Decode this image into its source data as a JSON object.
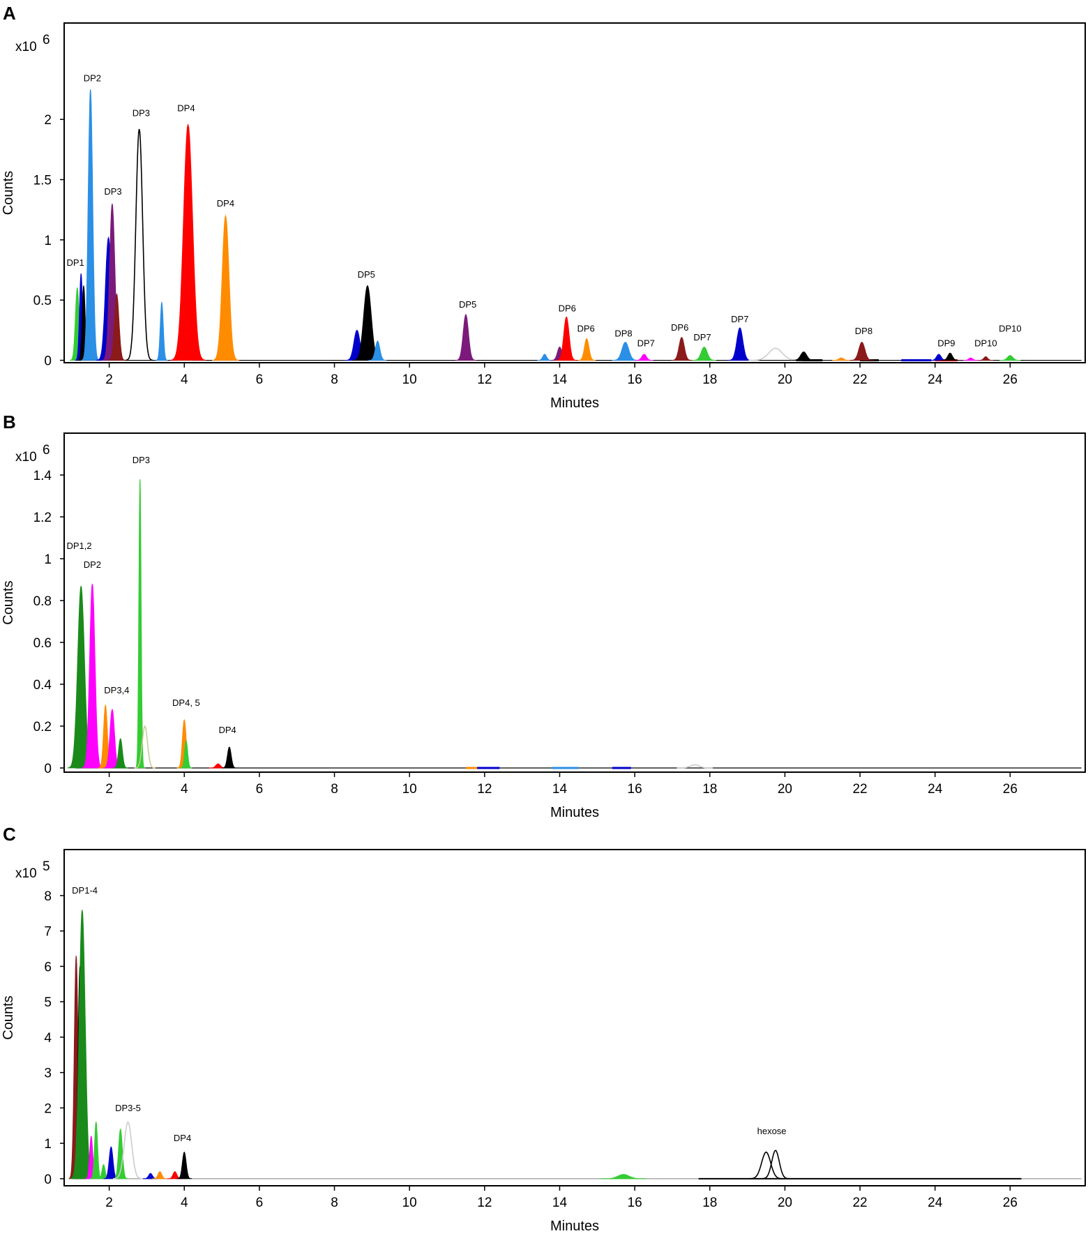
{
  "chart_data": [
    {
      "type": "line",
      "panel_letter": "A",
      "xlabel": "Minutes",
      "ylabel": "Counts",
      "y_multiplier": "x10",
      "y_exponent": "6",
      "xlim": [
        0.8,
        28
      ],
      "ylim": [
        -0.02,
        2.8
      ],
      "x_ticks": [
        2,
        4,
        6,
        8,
        10,
        12,
        14,
        16,
        18,
        20,
        22,
        24,
        26
      ],
      "y_ticks": [
        0,
        0.5,
        1,
        1.5,
        2
      ],
      "y_tick_labels": [
        "0",
        "0.5",
        "1",
        "1.5",
        "2"
      ],
      "grid": false,
      "peaks": [
        {
          "x": 1.15,
          "y": 0.6,
          "w": 0.05,
          "color": "#33cc33"
        },
        {
          "x": 1.25,
          "y": 0.72,
          "w": 0.04,
          "color": "#0000cc"
        },
        {
          "x": 1.32,
          "y": 0.62,
          "w": 0.04,
          "color": "#000000"
        },
        {
          "x": 1.5,
          "y": 2.25,
          "w": 0.06,
          "color": "#2b8fe6"
        },
        {
          "x": 1.98,
          "y": 1.02,
          "w": 0.08,
          "color": "#0000cc"
        },
        {
          "x": 2.08,
          "y": 1.3,
          "w": 0.07,
          "color": "#7b1a7b"
        },
        {
          "x": 2.2,
          "y": 0.55,
          "w": 0.06,
          "color": "#8b1a1a"
        },
        {
          "x": 2.8,
          "y": 1.92,
          "w": 0.09,
          "color": "#000000",
          "fill": false
        },
        {
          "x": 3.4,
          "y": 0.48,
          "w": 0.04,
          "color": "#2b8fe6"
        },
        {
          "x": 3.85,
          "y": 0.07,
          "w": 0.05,
          "color": "#7b1a7b"
        },
        {
          "x": 4.0,
          "y": 0.08,
          "w": 0.05,
          "color": "#33cc33"
        },
        {
          "x": 4.1,
          "y": 1.96,
          "w": 0.12,
          "color": "#ff0000"
        },
        {
          "x": 5.1,
          "y": 1.2,
          "w": 0.09,
          "color": "#ff8c00"
        },
        {
          "x": 8.6,
          "y": 0.25,
          "w": 0.08,
          "color": "#0000cc"
        },
        {
          "x": 8.88,
          "y": 0.62,
          "w": 0.1,
          "color": "#000000"
        },
        {
          "x": 9.15,
          "y": 0.16,
          "w": 0.06,
          "color": "#2b8fe6"
        },
        {
          "x": 11.5,
          "y": 0.38,
          "w": 0.07,
          "color": "#7b1a7b"
        },
        {
          "x": 13.6,
          "y": 0.05,
          "w": 0.05,
          "color": "#2b8fe6"
        },
        {
          "x": 14.0,
          "y": 0.11,
          "w": 0.06,
          "color": "#7b1a7b"
        },
        {
          "x": 14.18,
          "y": 0.36,
          "w": 0.07,
          "color": "#ff0000"
        },
        {
          "x": 14.72,
          "y": 0.18,
          "w": 0.06,
          "color": "#ff8c00"
        },
        {
          "x": 15.75,
          "y": 0.15,
          "w": 0.09,
          "color": "#2b8fe6"
        },
        {
          "x": 16.25,
          "y": 0.05,
          "w": 0.06,
          "color": "#ff00ff"
        },
        {
          "x": 17.25,
          "y": 0.19,
          "w": 0.07,
          "color": "#8b1a1a"
        },
        {
          "x": 17.85,
          "y": 0.11,
          "w": 0.08,
          "color": "#33cc33"
        },
        {
          "x": 18.8,
          "y": 0.27,
          "w": 0.08,
          "color": "#0000cc"
        },
        {
          "x": 19.75,
          "y": 0.1,
          "w": 0.18,
          "color": "#cccccc",
          "fill": false
        },
        {
          "x": 20.5,
          "y": 0.07,
          "w": 0.08,
          "color": "#000000"
        },
        {
          "x": 21.5,
          "y": 0.02,
          "w": 0.06,
          "color": "#ff8c00"
        },
        {
          "x": 22.05,
          "y": 0.15,
          "w": 0.08,
          "color": "#8b1a1a"
        },
        {
          "x": 24.1,
          "y": 0.05,
          "w": 0.06,
          "color": "#0000cc"
        },
        {
          "x": 24.4,
          "y": 0.06,
          "w": 0.06,
          "color": "#000000"
        },
        {
          "x": 24.95,
          "y": 0.02,
          "w": 0.05,
          "color": "#ff00ff"
        },
        {
          "x": 25.35,
          "y": 0.03,
          "w": 0.05,
          "color": "#8b1a1a"
        },
        {
          "x": 26.0,
          "y": 0.04,
          "w": 0.07,
          "color": "#33cc33"
        }
      ],
      "baselines": [
        {
          "x0": 1.1,
          "x1": 27.9,
          "color": "#000000"
        },
        {
          "x0": 23.1,
          "x1": 23.9,
          "color": "#0000cc",
          "width": 3
        },
        {
          "x0": 20.3,
          "x1": 21.0,
          "color": "#000000",
          "width": 3
        },
        {
          "x0": 22.0,
          "x1": 22.5,
          "color": "#000000",
          "width": 3
        },
        {
          "x0": 24.0,
          "x1": 24.6,
          "color": "#ff0000",
          "width": 3
        }
      ],
      "annotations": [
        {
          "text": "DP1",
          "x": 1.1,
          "y": 0.74
        },
        {
          "text": "DP2",
          "x": 1.55,
          "y": 2.27
        },
        {
          "text": "DP3",
          "x": 2.1,
          "y": 1.33
        },
        {
          "text": "DP3",
          "x": 2.85,
          "y": 1.98
        },
        {
          "text": "DP4",
          "x": 4.05,
          "y": 2.02
        },
        {
          "text": "DP4",
          "x": 5.1,
          "y": 1.23
        },
        {
          "text": "DP5",
          "x": 8.85,
          "y": 0.64
        },
        {
          "text": "DP5",
          "x": 11.55,
          "y": 0.39
        },
        {
          "text": "DP6",
          "x": 14.2,
          "y": 0.36
        },
        {
          "text": "DP6",
          "x": 14.7,
          "y": 0.19
        },
        {
          "text": "DP8",
          "x": 15.7,
          "y": 0.15
        },
        {
          "text": "DP7",
          "x": 16.3,
          "y": 0.07
        },
        {
          "text": "DP6",
          "x": 17.2,
          "y": 0.2
        },
        {
          "text": "DP7",
          "x": 17.8,
          "y": 0.12
        },
        {
          "text": "DP7",
          "x": 18.8,
          "y": 0.27
        },
        {
          "text": "DP8",
          "x": 22.1,
          "y": 0.17
        },
        {
          "text": "DP9",
          "x": 24.3,
          "y": 0.07
        },
        {
          "text": "DP10",
          "x": 25.35,
          "y": 0.07
        },
        {
          "text": "DP10",
          "x": 26.0,
          "y": 0.19
        }
      ]
    },
    {
      "type": "line",
      "panel_letter": "B",
      "xlabel": "Minutes",
      "ylabel": "Counts",
      "y_multiplier": "x10",
      "y_exponent": "6",
      "xlim": [
        0.8,
        28
      ],
      "ylim": [
        -0.02,
        1.6
      ],
      "x_ticks": [
        2,
        4,
        6,
        8,
        10,
        12,
        14,
        16,
        18,
        20,
        22,
        24,
        26
      ],
      "y_ticks": [
        0,
        0.2,
        0.4,
        0.6,
        0.8,
        1,
        1.2,
        1.4
      ],
      "y_tick_labels": [
        "0",
        "0.2",
        "0.4",
        "0.6",
        "0.8",
        "1",
        "1.2",
        "1.4"
      ],
      "grid": false,
      "peaks": [
        {
          "x": 1.25,
          "y": 0.87,
          "w": 0.09,
          "color": "#1a8a1a"
        },
        {
          "x": 1.55,
          "y": 0.88,
          "w": 0.07,
          "color": "#ff00ff"
        },
        {
          "x": 1.9,
          "y": 0.3,
          "w": 0.05,
          "color": "#ff8c00"
        },
        {
          "x": 2.08,
          "y": 0.28,
          "w": 0.06,
          "color": "#ff00ff"
        },
        {
          "x": 2.3,
          "y": 0.14,
          "w": 0.05,
          "color": "#1a8a1a"
        },
        {
          "x": 2.82,
          "y": 1.38,
          "w": 0.03,
          "color": "#33cc33"
        },
        {
          "x": 2.95,
          "y": 0.2,
          "w": 0.07,
          "color": "#cccc99",
          "fill": false
        },
        {
          "x": 4.0,
          "y": 0.23,
          "w": 0.05,
          "color": "#ff8c00"
        },
        {
          "x": 4.05,
          "y": 0.13,
          "w": 0.04,
          "color": "#33cc33"
        },
        {
          "x": 4.9,
          "y": 0.02,
          "w": 0.06,
          "color": "#ff0000"
        },
        {
          "x": 5.2,
          "y": 0.1,
          "w": 0.05,
          "color": "#000000"
        },
        {
          "x": 17.6,
          "y": 0.015,
          "w": 0.12,
          "color": "#cccccc",
          "fill": false
        }
      ],
      "baselines": [
        {
          "x0": 1.1,
          "x1": 27.9,
          "color": "#000000"
        },
        {
          "x0": 11.5,
          "x1": 11.9,
          "color": "#ff8c00",
          "width": 3
        },
        {
          "x0": 11.8,
          "x1": 12.4,
          "color": "#0000cc",
          "width": 3
        },
        {
          "x0": 13.8,
          "x1": 14.5,
          "color": "#2b8fe6",
          "width": 3
        },
        {
          "x0": 15.4,
          "x1": 15.9,
          "color": "#0000cc",
          "width": 3
        }
      ],
      "annotations": [
        {
          "text": "DP1,2",
          "x": 1.2,
          "y": 1.02
        },
        {
          "text": "DP2",
          "x": 1.55,
          "y": 0.93
        },
        {
          "text": "DP3,4",
          "x": 2.2,
          "y": 0.33
        },
        {
          "text": "DP3",
          "x": 2.85,
          "y": 1.43
        },
        {
          "text": "DP4, 5",
          "x": 4.05,
          "y": 0.27
        },
        {
          "text": "DP4",
          "x": 5.15,
          "y": 0.14
        }
      ]
    },
    {
      "type": "line",
      "panel_letter": "C",
      "xlabel": "Minutes",
      "ylabel": "Counts",
      "y_multiplier": "x10",
      "y_exponent": "5",
      "xlim": [
        0.8,
        28
      ],
      "ylim": [
        -0.2,
        9.3
      ],
      "x_ticks": [
        2,
        4,
        6,
        8,
        10,
        12,
        14,
        16,
        18,
        20,
        22,
        24,
        26
      ],
      "y_ticks": [
        0,
        1,
        2,
        3,
        4,
        5,
        6,
        7,
        8
      ],
      "y_tick_labels": [
        "0",
        "1",
        "2",
        "3",
        "4",
        "5",
        "6",
        "7",
        "8"
      ],
      "grid": false,
      "peaks": [
        {
          "x": 1.12,
          "y": 6.3,
          "w": 0.05,
          "color": "#8b1a1a"
        },
        {
          "x": 1.22,
          "y": 6.0,
          "w": 0.05,
          "color": "#000000"
        },
        {
          "x": 1.28,
          "y": 7.6,
          "w": 0.08,
          "color": "#1a8a1a"
        },
        {
          "x": 1.52,
          "y": 1.2,
          "w": 0.04,
          "color": "#ff00ff"
        },
        {
          "x": 1.65,
          "y": 1.6,
          "w": 0.04,
          "color": "#33cc33"
        },
        {
          "x": 1.85,
          "y": 0.4,
          "w": 0.04,
          "color": "#33cc33"
        },
        {
          "x": 2.05,
          "y": 0.9,
          "w": 0.05,
          "color": "#0000cc"
        },
        {
          "x": 2.3,
          "y": 1.4,
          "w": 0.05,
          "color": "#33cc33"
        },
        {
          "x": 2.5,
          "y": 1.6,
          "w": 0.1,
          "color": "#cccccc",
          "fill": false
        },
        {
          "x": 3.1,
          "y": 0.15,
          "w": 0.05,
          "color": "#0000cc"
        },
        {
          "x": 3.35,
          "y": 0.2,
          "w": 0.05,
          "color": "#ff8c00"
        },
        {
          "x": 3.75,
          "y": 0.2,
          "w": 0.05,
          "color": "#ff0000"
        },
        {
          "x": 4.0,
          "y": 0.75,
          "w": 0.05,
          "color": "#000000"
        },
        {
          "x": 15.7,
          "y": 0.12,
          "w": 0.15,
          "color": "#33cc33"
        },
        {
          "x": 19.5,
          "y": 0.75,
          "w": 0.12,
          "color": "#000000",
          "fill": false
        },
        {
          "x": 19.75,
          "y": 0.8,
          "w": 0.1,
          "color": "#000000",
          "fill": false
        }
      ],
      "baselines": [
        {
          "x0": 1.1,
          "x1": 27.9,
          "color": "#999999"
        },
        {
          "x0": 17.7,
          "x1": 26.3,
          "color": "#000000",
          "width": 2
        }
      ],
      "annotations": [
        {
          "text": "DP1-4",
          "x": 1.35,
          "y": 7.9
        },
        {
          "text": "DP3-5",
          "x": 2.5,
          "y": 1.75
        },
        {
          "text": "DP4",
          "x": 3.95,
          "y": 0.9
        },
        {
          "text": "hexose",
          "x": 19.65,
          "y": 1.1
        }
      ]
    }
  ]
}
